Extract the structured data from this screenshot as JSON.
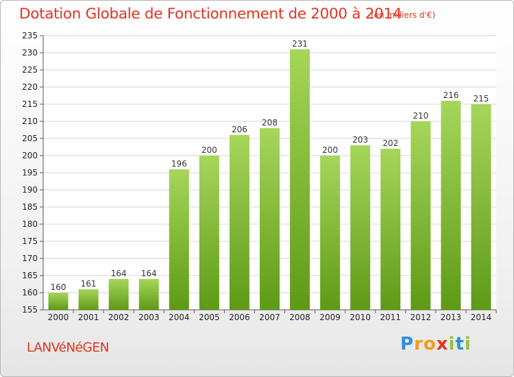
{
  "header": {
    "title": "Dotation Globale de Fonctionnement de 2000 à 2014",
    "subtitle": "(en milliers d'€)"
  },
  "footer": {
    "commune": "LANVéNéGEN",
    "logo": {
      "text": "Proxiti",
      "letters": [
        {
          "ch": "P",
          "color": "#2f8fd6"
        },
        {
          "ch": "r",
          "color": "#f39a1e"
        },
        {
          "ch": "o",
          "color": "#f39a1e"
        },
        {
          "ch": "x",
          "color": "#e2341f"
        },
        {
          "ch": "i",
          "color": "#8dc63f"
        },
        {
          "ch": "t",
          "color": "#2f8fd6"
        },
        {
          "ch": "i",
          "color": "#8dc63f"
        }
      ]
    }
  },
  "colors": {
    "bar_top": "#a6d65a",
    "bar_bottom": "#5e9a16",
    "text_accent": "#e2341f",
    "grid": "#d4d4d4"
  },
  "chart_data": {
    "type": "bar",
    "categories": [
      "2000",
      "2001",
      "2002",
      "2003",
      "2004",
      "2005",
      "2006",
      "2007",
      "2008",
      "2009",
      "2010",
      "2011",
      "2012",
      "2013",
      "2014"
    ],
    "values": [
      160,
      161,
      164,
      164,
      196,
      200,
      206,
      208,
      231,
      200,
      203,
      202,
      210,
      216,
      215
    ],
    "ylim": [
      155,
      235
    ],
    "yticks": [
      155,
      160,
      165,
      170,
      175,
      180,
      185,
      190,
      195,
      200,
      205,
      210,
      215,
      220,
      225,
      230,
      235
    ],
    "grid": "horizontal",
    "data_labels": true
  }
}
